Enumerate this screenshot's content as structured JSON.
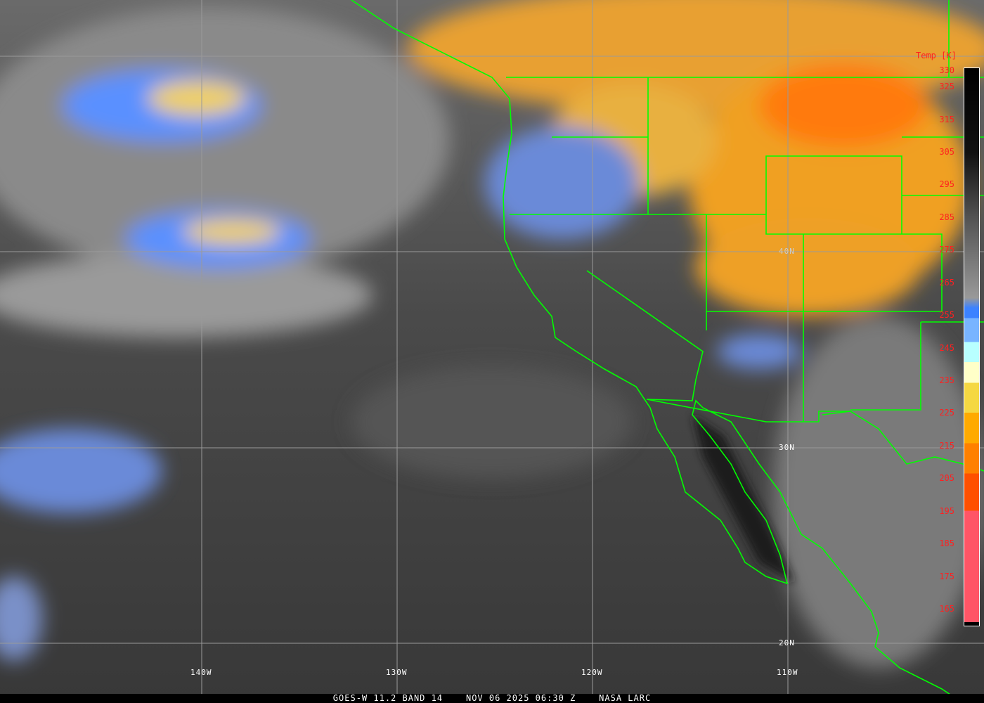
{
  "image": {
    "footer": {
      "satellite": "GOES-W 11.2 BAND 14",
      "datetime": "NOV 06 2025 06:30 Z",
      "source": "NASA LARC"
    },
    "longitude_labels": [
      "140W",
      "130W",
      "120W",
      "110W"
    ],
    "latitude_labels": [
      "40N",
      "30N",
      "20N"
    ],
    "colorbar": {
      "title": "Temp [K]",
      "ticks": [
        "330",
        "325",
        "315",
        "305",
        "295",
        "285",
        "275",
        "265",
        "255",
        "245",
        "235",
        "225",
        "215",
        "205",
        "195",
        "185",
        "175",
        "165"
      ],
      "range": [
        165,
        330
      ],
      "colors": {
        "cold_pink": "#ff5566",
        "red_orange": "#ff5000",
        "orange": "#ff8000",
        "amber": "#ffaa00",
        "yellow": "#f5d842",
        "light_yellow": "#ffffc8",
        "cyan": "#b8ffff",
        "light_blue": "#78b4ff",
        "blue": "#3c82ff",
        "warm_black": "#000000"
      }
    },
    "boundary_color": "#00ff00"
  }
}
